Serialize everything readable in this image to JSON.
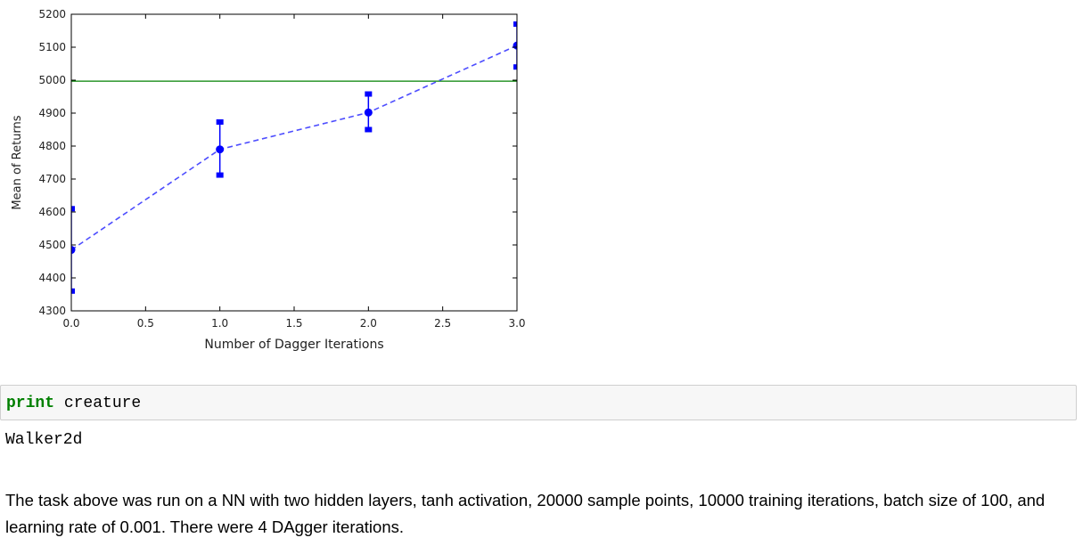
{
  "chart_data": {
    "type": "line",
    "xlabel": "Number of Dagger Iterations",
    "ylabel": "Mean of Returns",
    "xlim": [
      0.0,
      3.0
    ],
    "ylim": [
      4300,
      5200
    ],
    "xticks": [
      "0.0",
      "0.5",
      "1.0",
      "1.5",
      "2.0",
      "2.5",
      "3.0"
    ],
    "yticks": [
      "4300",
      "4400",
      "4500",
      "4600",
      "4700",
      "4800",
      "4900",
      "5000",
      "5100",
      "5200"
    ],
    "grid": false,
    "series": [
      {
        "x": [
          0,
          1,
          2,
          3
        ],
        "y": [
          4485,
          4790,
          4902,
          5105
        ],
        "yerr_low": [
          4360,
          4712,
          4850,
          5040
        ],
        "yerr_high": [
          4610,
          4873,
          4958,
          5170
        ],
        "style": "dashed",
        "color": "#0000ff"
      }
    ],
    "reference_line": {
      "y": 4997,
      "color": "#008000"
    }
  },
  "code": {
    "keyword": "print",
    "rest": " creature"
  },
  "output": "Walker2d",
  "paragraph": "The task above was run on a NN with two hidden layers, tanh activation, 20000 sample points, 10000 training iterations, batch size of 100, and learning rate of 0.001. There were 4 DAgger iterations."
}
